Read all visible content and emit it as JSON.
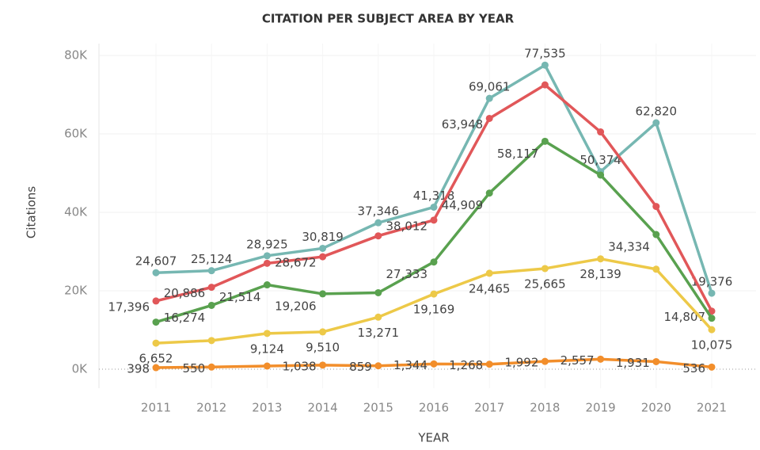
{
  "chart_data": {
    "type": "line",
    "title": "CITATION PER SUBJECT AREA BY YEAR",
    "x_label": "YEAR",
    "y_label": "Citations",
    "categories": [
      "2011",
      "2012",
      "2013",
      "2014",
      "2015",
      "2016",
      "2017",
      "2018",
      "2019",
      "2020",
      "2021"
    ],
    "series": [
      {
        "color": "#76b7b2",
        "values": [
          24607,
          25124,
          28925,
          30819,
          37346,
          41318,
          69061,
          77535,
          50374,
          62820,
          19376
        ],
        "value_labels": [
          "24,607",
          "25,124",
          "28,925",
          "30,819",
          "37,346",
          "41,318",
          "69,061",
          "77,535",
          "50,374",
          "62,820",
          "19,376"
        ]
      },
      {
        "color": "#e15759",
        "values": [
          17396,
          20886,
          27000,
          28672,
          34000,
          38012,
          63948,
          72500,
          60500,
          41500,
          14807
        ],
        "value_labels": [
          "17,396",
          "20,886",
          null,
          "28,672",
          null,
          "38,012",
          "63,948",
          null,
          null,
          null,
          "14,807"
        ]
      },
      {
        "color": "#59a14f",
        "values": [
          12000,
          16274,
          21514,
          19206,
          19500,
          27333,
          44909,
          58117,
          49500,
          34334,
          13000
        ],
        "value_labels": [
          null,
          "16,274",
          "21,514",
          "19,206",
          null,
          "27,333",
          "44,909",
          "58,117",
          null,
          "34,334",
          null
        ]
      },
      {
        "color": "#edc948",
        "values": [
          6652,
          7300,
          9124,
          9510,
          13271,
          19169,
          24465,
          25665,
          28139,
          25500,
          10075
        ],
        "value_labels": [
          "6,652",
          null,
          "9,124",
          "9,510",
          "13,271",
          "19,169",
          "24,465",
          "25,665",
          "28,139",
          null,
          "10,075"
        ]
      },
      {
        "color": "#f28e2b",
        "values": [
          398,
          550,
          800,
          1038,
          859,
          1344,
          1268,
          1992,
          2557,
          1931,
          536
        ],
        "value_labels": [
          "398",
          "550",
          null,
          "1,038",
          "859",
          "1,344",
          "1,268",
          "1,992",
          "2,557",
          "1,931",
          "536"
        ]
      }
    ],
    "ylim": [
      0,
      80000
    ],
    "yticks": [
      {
        "value": 0,
        "label": "0K"
      },
      {
        "value": 20000,
        "label": "20K"
      },
      {
        "value": 40000,
        "label": "40K"
      },
      {
        "value": 60000,
        "label": "60K"
      },
      {
        "value": 80000,
        "label": "80K"
      }
    ],
    "grid": true
  }
}
